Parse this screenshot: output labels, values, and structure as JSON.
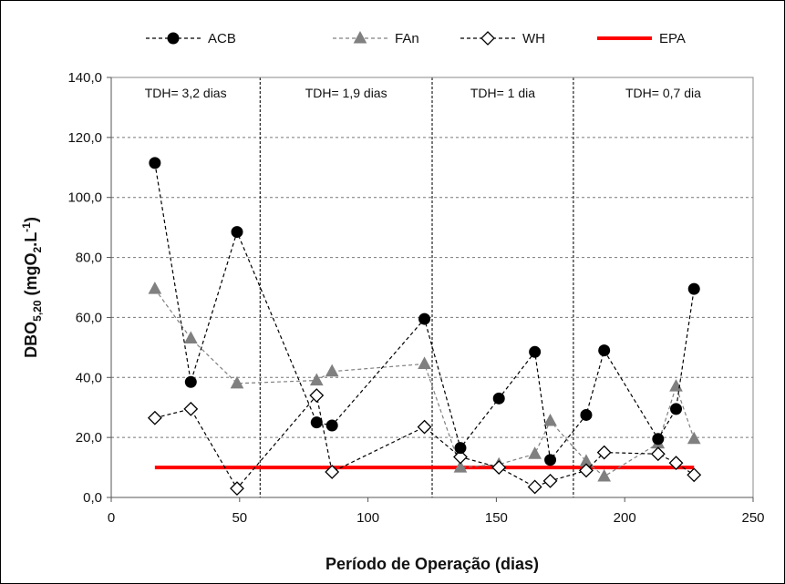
{
  "chart_data": {
    "type": "line",
    "xlabel": "Período de Operação (dias)",
    "ylabel_base": "DBO",
    "ylabel_sub": "5,20",
    "ylabel_units_pre": "(mgO",
    "ylabel_units_sub": "2",
    "ylabel_units_mid": ".L",
    "ylabel_units_sup": "-1",
    "ylabel_units_post": ")",
    "xlim": [
      0,
      250
    ],
    "ylim": [
      0,
      140
    ],
    "x_ticks": [
      0,
      50,
      100,
      150,
      200,
      250
    ],
    "x_tick_labels": [
      "0",
      "50",
      "100",
      "150",
      "200",
      "250"
    ],
    "y_ticks": [
      0,
      20,
      40,
      60,
      80,
      100,
      120,
      140
    ],
    "y_tick_labels": [
      "0,0",
      "20,0",
      "40,0",
      "60,0",
      "80,0",
      "100,0",
      "120,0",
      "140,0"
    ],
    "grid": "horizontal dashed",
    "legend_position": "top",
    "phase_dividers": [
      58,
      125,
      180
    ],
    "phases": [
      {
        "label": "TDH= 3,2 dias",
        "x_start": 0,
        "x_end": 58
      },
      {
        "label": "TDH= 1,9 dias",
        "x_start": 58,
        "x_end": 125
      },
      {
        "label": "TDH= 1 dia",
        "x_start": 125,
        "x_end": 180
      },
      {
        "label": "TDH= 0,7 dia",
        "x_start": 180,
        "x_end": 250
      }
    ],
    "series": [
      {
        "name": "ACB",
        "marker": "circle",
        "color": "#000000",
        "line": "dashed",
        "points": [
          [
            17,
            111.5
          ],
          [
            31,
            38.5
          ],
          [
            49,
            88.5
          ],
          [
            80,
            25
          ],
          [
            86,
            24
          ],
          [
            122,
            59.5
          ],
          [
            136,
            16.5
          ],
          [
            151,
            33
          ],
          [
            165,
            48.5
          ],
          [
            171,
            12.5
          ],
          [
            185,
            27.5
          ],
          [
            192,
            49
          ],
          [
            213,
            19.5
          ],
          [
            220,
            29.5
          ],
          [
            227,
            69.5
          ]
        ]
      },
      {
        "name": "FAn",
        "marker": "triangle",
        "color": "#808080",
        "line": "dashed",
        "points": [
          [
            17,
            69.5
          ],
          [
            31,
            53
          ],
          [
            49,
            38
          ],
          [
            80,
            39
          ],
          [
            86,
            42
          ],
          [
            122,
            44.5
          ],
          [
            136,
            10
          ],
          [
            151,
            11
          ],
          [
            165,
            14.5
          ],
          [
            171,
            25.5
          ],
          [
            185,
            12
          ],
          [
            192,
            7
          ],
          [
            213,
            18
          ],
          [
            220,
            37
          ],
          [
            227,
            19.5
          ]
        ]
      },
      {
        "name": "WH",
        "marker": "diamond",
        "color": "#000000",
        "line": "dashed",
        "points": [
          [
            17,
            26.5
          ],
          [
            31,
            29.5
          ],
          [
            49,
            3
          ],
          [
            80,
            34
          ],
          [
            86,
            8.5
          ],
          [
            122,
            23.5
          ],
          [
            136,
            13.5
          ],
          [
            151,
            10
          ],
          [
            165,
            3.5
          ],
          [
            171,
            5.5
          ],
          [
            185,
            9
          ],
          [
            192,
            15
          ],
          [
            213,
            14.5
          ],
          [
            220,
            11.5
          ],
          [
            227,
            7.5
          ]
        ]
      },
      {
        "name": "EPA",
        "marker": "none",
        "color": "#ff0000",
        "line": "solid",
        "points": [
          [
            17,
            10
          ],
          [
            227,
            10
          ]
        ]
      }
    ]
  }
}
